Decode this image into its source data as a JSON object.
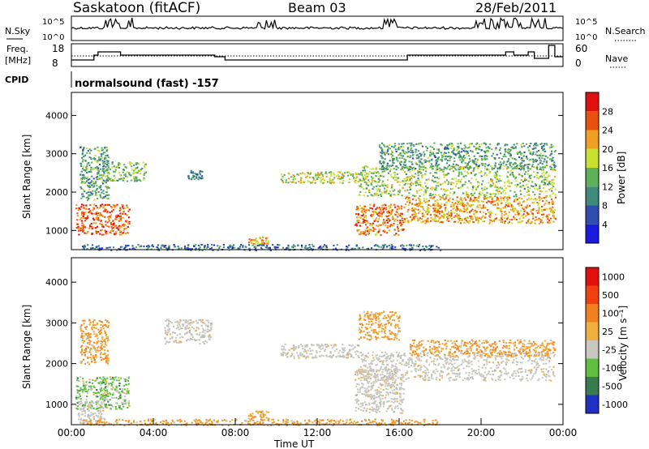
{
  "header": {
    "station": "Saskatoon (fitACF)",
    "beam": "Beam 03",
    "date": "28/Feb/2011"
  },
  "noise_panel": {
    "left_label": "N.Sky",
    "right_label": "N.Search",
    "left_ticks": [
      "10^5",
      "10^0"
    ],
    "right_ticks": [
      "10^5",
      "10^0"
    ]
  },
  "freq_panel": {
    "left_label_line1": "Freq.",
    "left_label_line2": "[MHz]",
    "right_label": "Nave",
    "left_ticks": [
      "18",
      "8"
    ],
    "right_ticks": [
      "60",
      "0"
    ]
  },
  "cpid": {
    "label": "CPID",
    "value": "normalsound (fast) -157"
  },
  "chart_data": [
    {
      "type": "heatmap",
      "name": "power",
      "ylabel": "Slant Range [km]",
      "xlabel": "",
      "yticks": [
        "1000",
        "2000",
        "3000",
        "4000"
      ],
      "ylim": [
        500,
        4600
      ],
      "xlim": [
        0,
        24
      ],
      "colorbar": {
        "label": "Power [dB]",
        "ticks": [
          "4",
          "8",
          "12",
          "16",
          "20",
          "24",
          "28"
        ],
        "colors": [
          "#1a1adc",
          "#2f4fb0",
          "#3f8a7a",
          "#5fb05a",
          "#c8e030",
          "#f0a020",
          "#e85010",
          "#e01010"
        ]
      },
      "regions": [
        {
          "t": [
            0.4,
            1.8
          ],
          "r": [
            1800,
            3200
          ],
          "level": 10
        },
        {
          "t": [
            0.2,
            2.8
          ],
          "r": [
            900,
            1700
          ],
          "level": 24
        },
        {
          "t": [
            1.6,
            3.6
          ],
          "r": [
            2300,
            2800
          ],
          "level": 12
        },
        {
          "t": [
            5.6,
            6.4
          ],
          "r": [
            2350,
            2600
          ],
          "level": 8
        },
        {
          "t": [
            8.6,
            9.6
          ],
          "r": [
            650,
            850
          ],
          "level": 20
        },
        {
          "t": [
            10.2,
            14.0
          ],
          "r": [
            2250,
            2550
          ],
          "level": 16
        },
        {
          "t": [
            13.8,
            16.2
          ],
          "r": [
            900,
            1700
          ],
          "level": 22
        },
        {
          "t": [
            14.0,
            23.6
          ],
          "r": [
            1900,
            2700
          ],
          "level": 14
        },
        {
          "t": [
            16.2,
            23.6
          ],
          "r": [
            1200,
            1900
          ],
          "level": 20
        },
        {
          "t": [
            15.0,
            23.6
          ],
          "r": [
            2600,
            3300
          ],
          "level": 10
        },
        {
          "t": [
            0.5,
            18.0
          ],
          "r": [
            500,
            650
          ],
          "level": 6
        }
      ]
    },
    {
      "type": "heatmap",
      "name": "velocity",
      "ylabel": "Slant Range [km]",
      "xlabel": "Time UT",
      "yticks": [
        "1000",
        "2000",
        "3000",
        "4000"
      ],
      "xticks": [
        "00:00",
        "04:00",
        "08:00",
        "12:00",
        "16:00",
        "20:00",
        "00:00"
      ],
      "ylim": [
        500,
        4600
      ],
      "xlim": [
        0,
        24
      ],
      "colorbar": {
        "label": "Velocity [m s⁻¹]",
        "ticks": [
          "1000",
          "500",
          "100",
          "25",
          "-25",
          "-100",
          "-500",
          "-1000"
        ],
        "colors": [
          "#2030c0",
          "#3a7a50",
          "#5fbf40",
          "#c8c8c0",
          "#f0b040",
          "#f08020",
          "#f04010",
          "#e01010"
        ]
      },
      "regions": [
        {
          "t": [
            0.4,
            1.8
          ],
          "r": [
            2000,
            3100
          ],
          "vel": "orange"
        },
        {
          "t": [
            0.2,
            2.8
          ],
          "r": [
            900,
            1700
          ],
          "vel": "green"
        },
        {
          "t": [
            0.3,
            1.6
          ],
          "r": [
            550,
            1100
          ],
          "vel": "gray"
        },
        {
          "t": [
            4.5,
            6.8
          ],
          "r": [
            2500,
            3100
          ],
          "vel": "gray"
        },
        {
          "t": [
            8.6,
            9.6
          ],
          "r": [
            650,
            850
          ],
          "vel": "orange"
        },
        {
          "t": [
            10.2,
            14.0
          ],
          "r": [
            2150,
            2500
          ],
          "vel": "gray"
        },
        {
          "t": [
            13.8,
            16.2
          ],
          "r": [
            800,
            1900
          ],
          "vel": "gray"
        },
        {
          "t": [
            14.0,
            23.6
          ],
          "r": [
            1600,
            2300
          ],
          "vel": "gray"
        },
        {
          "t": [
            16.5,
            23.6
          ],
          "r": [
            2200,
            2600
          ],
          "vel": "orange"
        },
        {
          "t": [
            14.0,
            16.0
          ],
          "r": [
            2600,
            3300
          ],
          "vel": "orange"
        },
        {
          "t": [
            0.5,
            18.0
          ],
          "r": [
            500,
            650
          ],
          "vel": "orange"
        }
      ]
    }
  ]
}
